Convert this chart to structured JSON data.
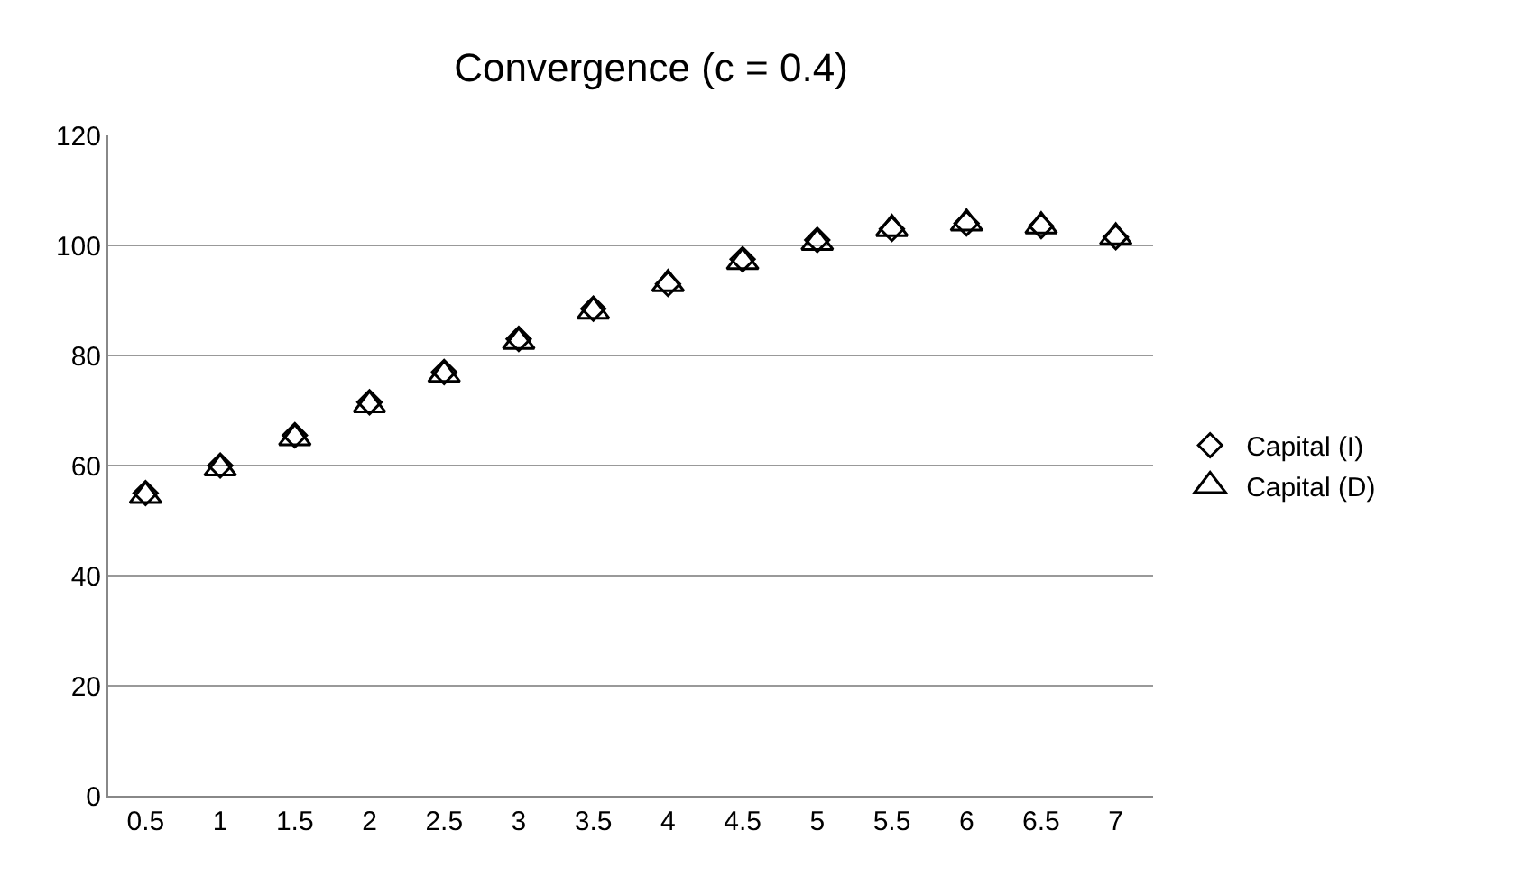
{
  "chart_data": {
    "type": "scatter",
    "title": "Convergence (c = 0.4)",
    "categories": [
      "0.5",
      "1",
      "1.5",
      "2",
      "2.5",
      "3",
      "3.5",
      "4",
      "4.5",
      "5",
      "5.5",
      "6",
      "6.5",
      "7"
    ],
    "series": [
      {
        "name": "Capital (I)",
        "color": "#000000",
        "marker": "diamond",
        "values": [
          55,
          60,
          65.5,
          71.5,
          77,
          83,
          88.5,
          93,
          97.5,
          101,
          103,
          104,
          103.5,
          101.5
        ]
      },
      {
        "name": "Capital (D)",
        "color": "#000000",
        "marker": "triangle",
        "values": [
          54.5,
          59.5,
          65,
          71,
          76.5,
          82.5,
          88,
          93,
          97,
          100.5,
          103,
          104,
          103.5,
          101.5
        ]
      }
    ],
    "ylim": [
      0,
      120
    ],
    "yticks": [
      0,
      20,
      40,
      60,
      80,
      100,
      120
    ],
    "grid": "y",
    "legend": "right"
  }
}
